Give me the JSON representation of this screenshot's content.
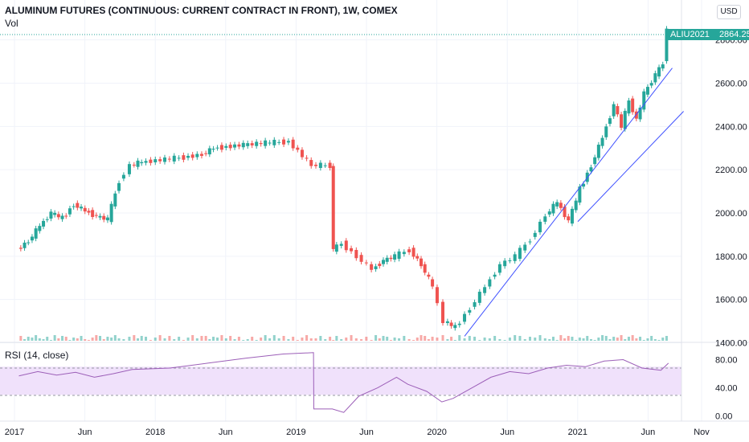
{
  "header": {
    "title": "ALUMINUM FUTURES (CONTINUOUS: CURRENT CONTRACT IN FRONT), 1W, COMEX",
    "vol_label": "Vol"
  },
  "rsi": {
    "label": "RSI (14, close)",
    "upper_band": 70,
    "lower_band": 30
  },
  "currency": "USD",
  "last_price": {
    "symbol": "ALIU2021",
    "value": "2864.25"
  },
  "colors": {
    "up": "#26a69a",
    "down": "#ef5350",
    "trendline": "#3f51ff",
    "rsi_line": "#9c5fb8",
    "rsi_band": "#f0e1fb"
  },
  "chart_data": {
    "type": "candlestick",
    "price_axis": {
      "ticks": [
        "1400.00",
        "1600.00",
        "1800.00",
        "2000.00",
        "2200.00",
        "2400.00",
        "2600.00",
        "2800.00"
      ],
      "ylim": [
        1320,
        2940
      ]
    },
    "rsi_axis": {
      "ticks": [
        "0.00",
        "40.00",
        "80.00"
      ],
      "ylim": [
        -5,
        100
      ]
    },
    "time_axis": {
      "labels": [
        "2017",
        "Jun",
        "2018",
        "Jun",
        "2019",
        "Jun",
        "2020",
        "Jun",
        "2021",
        "Jun",
        "Nov"
      ]
    },
    "price_series": [
      {
        "t": 0.0,
        "v": 1830
      },
      {
        "t": 0.03,
        "v": 1870
      },
      {
        "t": 0.06,
        "v": 1940
      },
      {
        "t": 0.09,
        "v": 2000
      },
      {
        "t": 0.12,
        "v": 1975
      },
      {
        "t": 0.15,
        "v": 2040
      },
      {
        "t": 0.18,
        "v": 2010
      },
      {
        "t": 0.21,
        "v": 1985
      },
      {
        "t": 0.24,
        "v": 1970
      },
      {
        "t": 0.27,
        "v": 2150
      },
      {
        "t": 0.3,
        "v": 2220
      },
      {
        "t": 0.33,
        "v": 2235
      },
      {
        "t": 0.38,
        "v": 2245
      },
      {
        "t": 0.43,
        "v": 2255
      },
      {
        "t": 0.49,
        "v": 2270
      },
      {
        "t": 0.52,
        "v": 2300
      },
      {
        "t": 0.6,
        "v": 2315
      },
      {
        "t": 0.67,
        "v": 2325
      },
      {
        "t": 0.72,
        "v": 2330
      },
      {
        "t": 0.78,
        "v": 2220
      },
      {
        "t": 0.83,
        "v": 2220
      },
      {
        "t": 0.835,
        "v": 1830
      },
      {
        "t": 0.86,
        "v": 1860
      },
      {
        "t": 0.9,
        "v": 1800
      },
      {
        "t": 0.94,
        "v": 1740
      },
      {
        "t": 0.97,
        "v": 1780
      },
      {
        "t": 1.0,
        "v": 1800
      },
      {
        "t": 1.04,
        "v": 1830
      },
      {
        "t": 1.07,
        "v": 1760
      },
      {
        "t": 1.1,
        "v": 1660
      },
      {
        "t": 1.13,
        "v": 1500
      },
      {
        "t": 1.16,
        "v": 1470
      },
      {
        "t": 1.2,
        "v": 1560
      },
      {
        "t": 1.24,
        "v": 1660
      },
      {
        "t": 1.28,
        "v": 1760
      },
      {
        "t": 1.32,
        "v": 1800
      },
      {
        "t": 1.36,
        "v": 1880
      },
      {
        "t": 1.4,
        "v": 1990
      },
      {
        "t": 1.43,
        "v": 2050
      },
      {
        "t": 1.46,
        "v": 1960
      },
      {
        "t": 1.49,
        "v": 2110
      },
      {
        "t": 1.52,
        "v": 2220
      },
      {
        "t": 1.55,
        "v": 2350
      },
      {
        "t": 1.58,
        "v": 2500
      },
      {
        "t": 1.6,
        "v": 2400
      },
      {
        "t": 1.62,
        "v": 2520
      },
      {
        "t": 1.64,
        "v": 2430
      },
      {
        "t": 1.66,
        "v": 2550
      },
      {
        "t": 1.69,
        "v": 2640
      },
      {
        "t": 1.71,
        "v": 2690
      },
      {
        "t": 1.72,
        "v": 2864.25
      }
    ],
    "trendlines": [
      {
        "from": {
          "t": 1.18,
          "v": 1430
        },
        "to": {
          "t": 1.73,
          "v": 2670
        }
      },
      {
        "from": {
          "t": 1.48,
          "v": 1960
        },
        "to": {
          "t": 1.76,
          "v": 2470
        }
      }
    ],
    "rsi_series": [
      {
        "t": 0.0,
        "v": 57
      },
      {
        "t": 0.05,
        "v": 63
      },
      {
        "t": 0.1,
        "v": 58
      },
      {
        "t": 0.15,
        "v": 62
      },
      {
        "t": 0.2,
        "v": 55
      },
      {
        "t": 0.25,
        "v": 60
      },
      {
        "t": 0.3,
        "v": 66
      },
      {
        "t": 0.4,
        "v": 68
      },
      {
        "t": 0.5,
        "v": 75
      },
      {
        "t": 0.6,
        "v": 82
      },
      {
        "t": 0.7,
        "v": 88
      },
      {
        "t": 0.78,
        "v": 90
      },
      {
        "t": 0.781,
        "v": 10
      },
      {
        "t": 0.83,
        "v": 10
      },
      {
        "t": 0.86,
        "v": 5
      },
      {
        "t": 0.9,
        "v": 28
      },
      {
        "t": 0.95,
        "v": 40
      },
      {
        "t": 1.0,
        "v": 55
      },
      {
        "t": 1.03,
        "v": 45
      },
      {
        "t": 1.08,
        "v": 35
      },
      {
        "t": 1.12,
        "v": 20
      },
      {
        "t": 1.15,
        "v": 25
      },
      {
        "t": 1.2,
        "v": 40
      },
      {
        "t": 1.25,
        "v": 55
      },
      {
        "t": 1.3,
        "v": 63
      },
      {
        "t": 1.35,
        "v": 60
      },
      {
        "t": 1.4,
        "v": 68
      },
      {
        "t": 1.45,
        "v": 72
      },
      {
        "t": 1.5,
        "v": 70
      },
      {
        "t": 1.55,
        "v": 78
      },
      {
        "t": 1.6,
        "v": 80
      },
      {
        "t": 1.65,
        "v": 68
      },
      {
        "t": 1.7,
        "v": 65
      },
      {
        "t": 1.72,
        "v": 75
      }
    ]
  }
}
